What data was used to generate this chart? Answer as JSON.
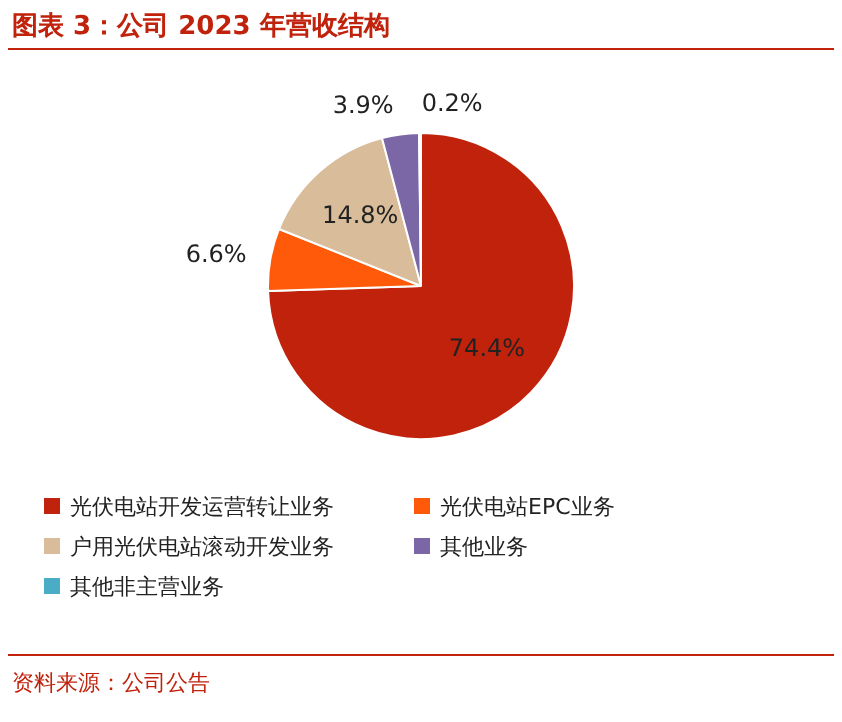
{
  "chart_data": {
    "type": "pie",
    "title": "图表 3：公司 2023 年营收结构",
    "categories": [
      "光伏电站开发运营转让业务",
      "光伏电站EPC业务",
      "户用光伏电站滚动开发业务",
      "其他业务",
      "其他非主营业务"
    ],
    "values": [
      74.4,
      6.6,
      14.8,
      3.9,
      0.2
    ],
    "colors": [
      "#c0220c",
      "#ff5a0a",
      "#d9bd9a",
      "#7b67a6",
      "#4bacc6"
    ],
    "value_labels": [
      "74.4%",
      "6.6%",
      "14.8%",
      "3.9%",
      "0.2%"
    ],
    "legend": "bottom",
    "annotations": [
      "资料来源：公司公告"
    ]
  }
}
